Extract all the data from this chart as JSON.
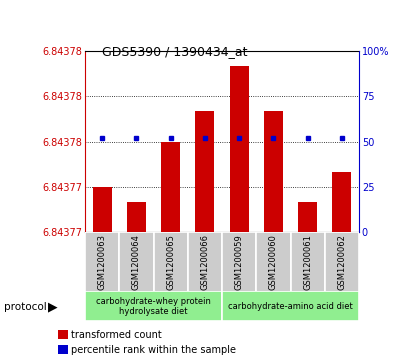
{
  "title": "GDS5390 / 1390434_at",
  "samples": [
    "GSM1200063",
    "GSM1200064",
    "GSM1200065",
    "GSM1200066",
    "GSM1200059",
    "GSM1200060",
    "GSM1200061",
    "GSM1200062"
  ],
  "bar_values": [
    6.843773,
    6.843772,
    6.843776,
    6.843778,
    6.843781,
    6.843778,
    6.843772,
    6.843774
  ],
  "percentile_values": [
    52,
    52,
    52,
    52,
    52,
    52,
    52,
    52
  ],
  "y_min": 6.84377,
  "y_max": 6.843782,
  "right_y_ticks": [
    0,
    25,
    50,
    75,
    100
  ],
  "left_y_tick_labels": [
    "6.84377",
    "6.84377",
    "6.84378",
    "6.84378",
    "6.84378"
  ],
  "bar_color": "#cc0000",
  "dot_color": "#0000cc",
  "protocol_groups": [
    {
      "label": "carbohydrate-whey protein\nhydrolysate diet",
      "start": 0,
      "end": 4,
      "color": "#90ee90"
    },
    {
      "label": "carbohydrate-amino acid diet",
      "start": 4,
      "end": 8,
      "color": "#90ee90"
    }
  ],
  "left_label_color": "#cc0000",
  "right_label_color": "#0000cc",
  "bar_bottom": 6.84377,
  "sample_box_color": "#cccccc",
  "sample_box_edge": "#ffffff"
}
